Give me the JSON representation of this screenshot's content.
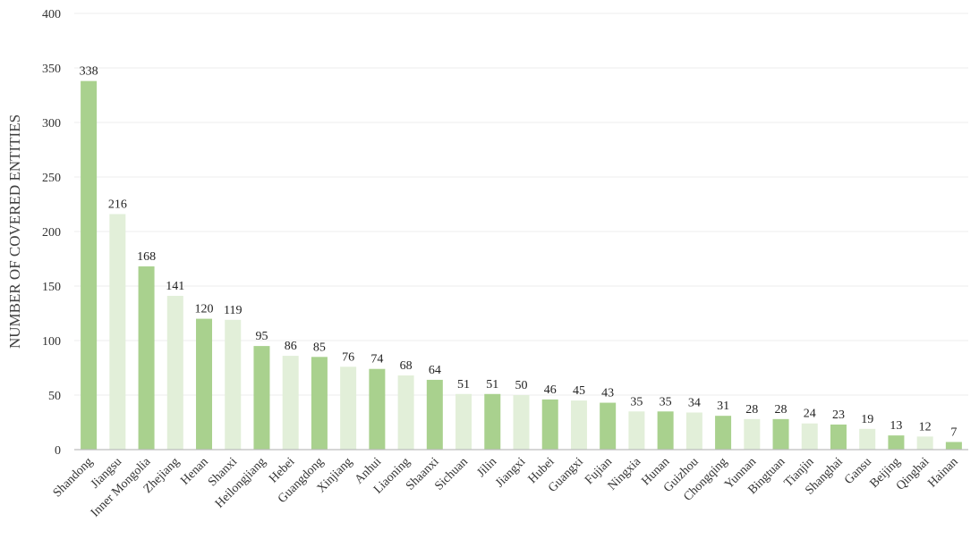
{
  "chart_data": {
    "type": "bar",
    "title": "",
    "xlabel": "",
    "ylabel": "NUMBER OF COVERED ENTITIES",
    "ylim": [
      0,
      400
    ],
    "yticks": [
      0,
      50,
      100,
      150,
      200,
      250,
      300,
      350,
      400
    ],
    "grid": true,
    "legend": "none",
    "colors": {
      "dark": "#a9d18e",
      "light": "#e2efd9"
    },
    "categories": [
      "Shandong",
      "Jiangsu",
      "Inner Mongolia",
      "Zhejiang",
      "Henan",
      "Shanxi",
      "Heilongjiang",
      "Hebei",
      "Guangdong",
      "Xinjiang",
      "Anhui",
      "Liaoning",
      "Shaanxi",
      "Sichuan",
      "Jilin",
      "Jiangxi",
      "Hubei",
      "Guangxi",
      "Fujian",
      "Ningxia",
      "Hunan",
      "Guizhou",
      "Chongqing",
      "Yunnan",
      "Bingtuan",
      "Tianjin",
      "Shanghai",
      "Gansu",
      "Beijing",
      "Qinghai",
      "Hainan"
    ],
    "values": [
      338,
      216,
      168,
      141,
      120,
      119,
      95,
      86,
      85,
      76,
      74,
      68,
      64,
      51,
      51,
      50,
      46,
      45,
      43,
      35,
      35,
      34,
      31,
      28,
      28,
      24,
      23,
      19,
      13,
      12,
      7
    ],
    "bar_shades": [
      "dark",
      "light",
      "dark",
      "light",
      "dark",
      "light",
      "dark",
      "light",
      "dark",
      "light",
      "dark",
      "light",
      "dark",
      "light",
      "dark",
      "light",
      "dark",
      "light",
      "dark",
      "light",
      "dark",
      "light",
      "dark",
      "light",
      "dark",
      "light",
      "dark",
      "light",
      "dark",
      "light",
      "dark"
    ]
  }
}
